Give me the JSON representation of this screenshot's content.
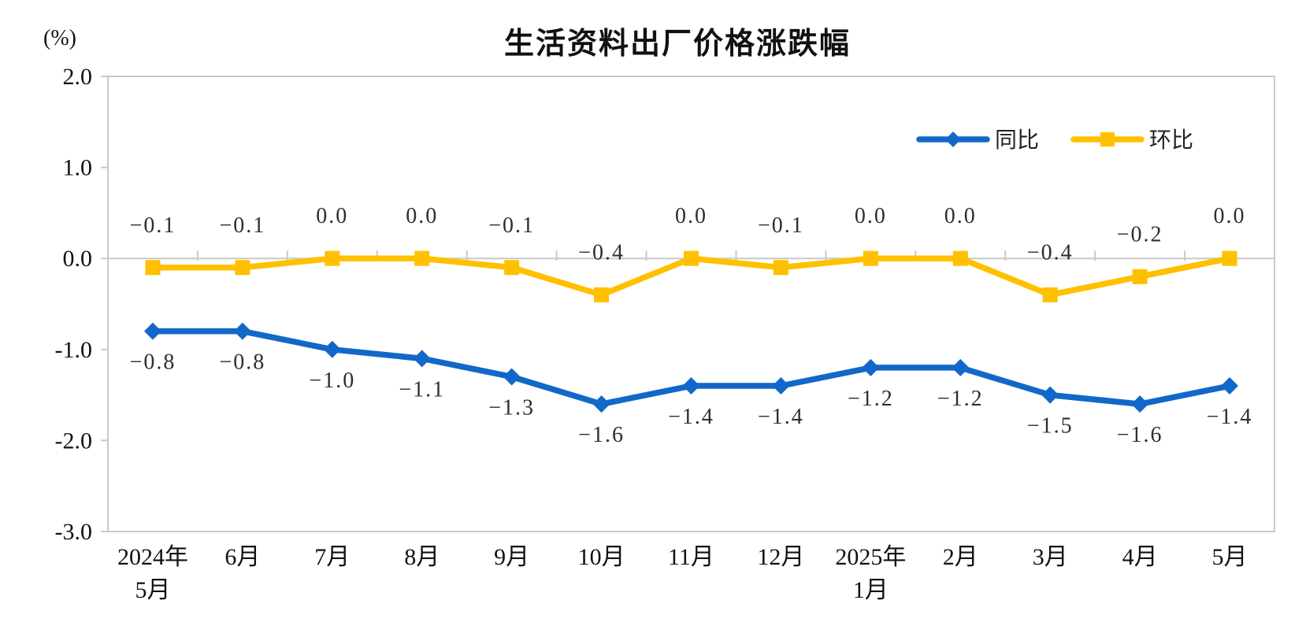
{
  "page": {
    "background": "#ffffff"
  },
  "chart_data": {
    "type": "line",
    "title": "生活资料出厂价格涨跌幅",
    "ylabel": "(%)",
    "categories": [
      [
        "2024年",
        "5月"
      ],
      [
        "6月"
      ],
      [
        "7月"
      ],
      [
        "8月"
      ],
      [
        "9月"
      ],
      [
        "10月"
      ],
      [
        "11月"
      ],
      [
        "12月"
      ],
      [
        "2025年",
        "1月"
      ],
      [
        "2月"
      ],
      [
        "3月"
      ],
      [
        "4月"
      ],
      [
        "5月"
      ]
    ],
    "series": [
      {
        "name": "同比",
        "color": "#1268C9",
        "marker": "diamond",
        "label_position": "below",
        "values": [
          -0.8,
          -0.8,
          -1.0,
          -1.1,
          -1.3,
          -1.6,
          -1.4,
          -1.4,
          -1.2,
          -1.2,
          -1.5,
          -1.6,
          -1.4
        ]
      },
      {
        "name": "环比",
        "color": "#FFC000",
        "marker": "square",
        "label_position": "above",
        "values": [
          -0.1,
          -0.1,
          0.0,
          0.0,
          -0.1,
          -0.4,
          0.0,
          -0.1,
          0.0,
          0.0,
          -0.4,
          -0.2,
          0.0
        ]
      }
    ],
    "y_ticks": [
      2.0,
      1.0,
      0.0,
      -1.0,
      -2.0,
      -3.0
    ],
    "ylim": [
      -3.0,
      2.0
    ],
    "decimal_places": 1,
    "grid": false,
    "legend_position": "top-right",
    "axis_color": "#c9c9c9",
    "label_color": "#2e2e2e"
  }
}
